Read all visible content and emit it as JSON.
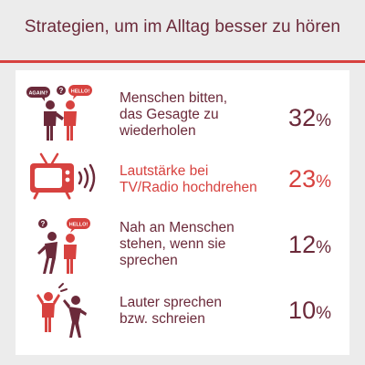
{
  "title": "Strategien, um im Alltag besser zu hören",
  "colors": {
    "accent": "#d7423f",
    "text": "#6b2a3a",
    "background": "#ececec",
    "card": "#ffffff"
  },
  "chart_data": {
    "type": "table",
    "title": "Strategien, um im Alltag besser zu hören",
    "unit": "%",
    "rows": [
      {
        "label_lines": [
          "Menschen bitten,",
          "das Gesagte zu",
          "wiederholen"
        ],
        "value": 32,
        "icon": "two-people-speech-bubbles-icon",
        "bubbles": [
          "AGAIN?",
          "?",
          "HELLO!"
        ],
        "highlight": false
      },
      {
        "label_lines": [
          "Lautstärke bei",
          "TV/Radio hochdrehen"
        ],
        "value": 23,
        "icon": "tv-volume-icon",
        "bubbles": [],
        "highlight": true
      },
      {
        "label_lines": [
          "Nah an Menschen",
          "stehen, wenn sie",
          "sprechen"
        ],
        "value": 12,
        "icon": "people-leaning-close-icon",
        "bubbles": [
          "?",
          "HELLO!"
        ],
        "highlight": false
      },
      {
        "label_lines": [
          "Lauter sprechen",
          "bzw. schreien"
        ],
        "value": 10,
        "icon": "people-shouting-icon",
        "bubbles": [],
        "highlight": false
      }
    ]
  }
}
